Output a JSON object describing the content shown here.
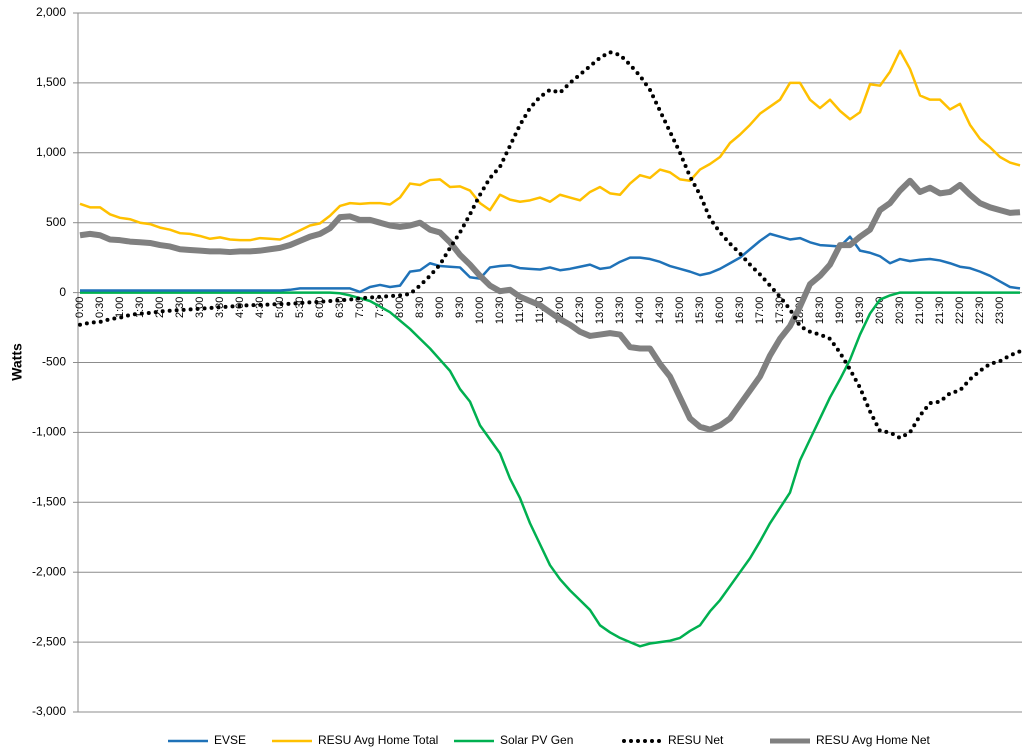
{
  "chart_data": {
    "type": "line",
    "y_label": "Watts",
    "ylim": [
      -3000,
      2000
    ],
    "yticks": [
      {
        "value": 2000,
        "label": "2,000"
      },
      {
        "value": 1500,
        "label": "1,500"
      },
      {
        "value": 1000,
        "label": "1,000"
      },
      500,
      0,
      -500,
      {
        "value": -1000,
        "label": "-1,000"
      },
      {
        "value": -1500,
        "label": "-1,500"
      },
      {
        "value": -2000,
        "label": "-2,000"
      },
      {
        "value": -2500,
        "label": "-2,500"
      },
      {
        "value": -3000,
        "label": "-3,000"
      }
    ],
    "grid": true,
    "legend": "bottom",
    "categories": [
      "0:00",
      null,
      "0:30",
      null,
      "1:00",
      null,
      "1:30",
      null,
      "2:00",
      null,
      "2:30",
      null,
      "3:00",
      null,
      "3:30",
      null,
      "4:00",
      null,
      "4:30",
      null,
      "5:00",
      null,
      "5:30",
      null,
      "6:00",
      null,
      "6:30",
      null,
      "7:00",
      null,
      "7:30",
      null,
      "8:00",
      null,
      "8:30",
      null,
      "9:00",
      null,
      "9:30",
      null,
      "10:00",
      null,
      "10:30",
      null,
      "11:00",
      null,
      "11:30",
      null,
      "12:00",
      null,
      "12:30",
      null,
      "13:00",
      null,
      "13:30",
      null,
      "14:00",
      null,
      "14:30",
      null,
      "15:00",
      null,
      "15:30",
      null,
      "16:00",
      null,
      "16:30",
      null,
      "17:00",
      null,
      "17:30",
      null,
      "18:00",
      null,
      "18:30",
      null,
      "19:00",
      null,
      "19:30",
      null,
      "20:00",
      null,
      "20:30",
      null,
      "21:00",
      null,
      "21:30",
      null,
      "22:00",
      null,
      "22:30",
      null,
      "23:00",
      null,
      null
    ],
    "series": [
      {
        "name": "EVSE",
        "color": "#1f72b8",
        "style": "solid",
        "width": 2.5,
        "values": [
          15,
          15,
          15,
          15,
          15,
          15,
          15,
          15,
          15,
          15,
          15,
          15,
          15,
          15,
          15,
          15,
          15,
          15,
          15,
          15,
          15,
          20,
          30,
          30,
          30,
          30,
          30,
          30,
          5,
          40,
          55,
          40,
          50,
          150,
          160,
          210,
          190,
          185,
          180,
          110,
          100,
          180,
          190,
          195,
          175,
          170,
          165,
          180,
          160,
          170,
          185,
          200,
          170,
          180,
          220,
          250,
          250,
          240,
          220,
          190,
          170,
          150,
          125,
          140,
          170,
          210,
          250,
          310,
          370,
          420,
          400,
          380,
          390,
          360,
          340,
          335,
          330,
          400,
          300,
          285,
          260,
          210,
          240,
          225,
          235,
          240,
          230,
          210,
          185,
          175,
          150,
          120,
          80,
          40,
          30
        ]
      },
      {
        "name": "RESU Avg Home Total",
        "color": "#ffc000",
        "style": "solid",
        "width": 2.5,
        "values": [
          635,
          610,
          610,
          560,
          535,
          525,
          500,
          490,
          465,
          450,
          425,
          420,
          405,
          385,
          395,
          380,
          375,
          375,
          390,
          385,
          380,
          410,
          445,
          480,
          495,
          550,
          620,
          640,
          635,
          640,
          640,
          630,
          680,
          780,
          770,
          805,
          810,
          755,
          760,
          730,
          640,
          590,
          700,
          665,
          650,
          660,
          680,
          650,
          700,
          680,
          660,
          720,
          755,
          710,
          700,
          780,
          840,
          820,
          880,
          860,
          810,
          800,
          880,
          920,
          970,
          1070,
          1130,
          1200,
          1280,
          1330,
          1380,
          1500,
          1500,
          1380,
          1320,
          1380,
          1300,
          1240,
          1290,
          1490,
          1480,
          1580,
          1730,
          1600,
          1410,
          1380,
          1380,
          1310,
          1350,
          1200,
          1100,
          1040,
          970,
          930,
          910
        ]
      },
      {
        "name": "Solar PV Gen",
        "color": "#00b050",
        "style": "solid",
        "width": 2.5,
        "values": [
          0,
          0,
          0,
          0,
          0,
          0,
          0,
          0,
          0,
          0,
          0,
          0,
          0,
          0,
          0,
          0,
          0,
          0,
          0,
          0,
          0,
          0,
          0,
          0,
          0,
          0,
          -5,
          -20,
          -40,
          -60,
          -100,
          -140,
          -200,
          -260,
          -330,
          -400,
          -480,
          -560,
          -690,
          -780,
          -950,
          -1050,
          -1150,
          -1330,
          -1470,
          -1650,
          -1800,
          -1950,
          -2050,
          -2130,
          -2200,
          -2270,
          -2380,
          -2430,
          -2470,
          -2500,
          -2530,
          -2510,
          -2500,
          -2490,
          -2470,
          -2420,
          -2380,
          -2280,
          -2200,
          -2100,
          -2000,
          -1900,
          -1780,
          -1650,
          -1540,
          -1430,
          -1200,
          -1050,
          -900,
          -750,
          -620,
          -480,
          -300,
          -150,
          -50,
          -20,
          0,
          0,
          0,
          0,
          0,
          0,
          0,
          0,
          0,
          0,
          0,
          0,
          0
        ]
      },
      {
        "name": "RESU Net",
        "color": "#000000",
        "style": "dotted",
        "width": 4,
        "values": [
          -230,
          -215,
          -210,
          -190,
          -180,
          -160,
          -150,
          -145,
          -135,
          -130,
          -125,
          -120,
          -115,
          -110,
          -105,
          -100,
          -95,
          -90,
          -88,
          -85,
          -82,
          -80,
          -75,
          -70,
          -65,
          -60,
          -55,
          -50,
          -40,
          -35,
          -30,
          -25,
          -20,
          -10,
          50,
          120,
          200,
          320,
          430,
          560,
          700,
          820,
          900,
          1050,
          1200,
          1320,
          1400,
          1450,
          1430,
          1500,
          1560,
          1620,
          1680,
          1720,
          1700,
          1630,
          1550,
          1450,
          1300,
          1150,
          1000,
          830,
          700,
          530,
          430,
          350,
          280,
          200,
          130,
          50,
          -30,
          -120,
          -240,
          -280,
          -300,
          -330,
          -430,
          -550,
          -680,
          -850,
          -990,
          -1000,
          -1040,
          -1000,
          -880,
          -790,
          -780,
          -720,
          -700,
          -620,
          -560,
          -510,
          -490,
          -450,
          -420
        ]
      },
      {
        "name": "RESU Avg Home Net",
        "color": "#808080",
        "style": "solid",
        "width": 6,
        "values": [
          410,
          420,
          410,
          380,
          375,
          365,
          360,
          355,
          340,
          330,
          310,
          305,
          300,
          295,
          295,
          290,
          295,
          295,
          300,
          310,
          320,
          340,
          370,
          400,
          420,
          460,
          540,
          545,
          520,
          520,
          500,
          480,
          470,
          480,
          500,
          450,
          430,
          360,
          270,
          200,
          120,
          50,
          10,
          20,
          -30,
          -60,
          -90,
          -140,
          -190,
          -230,
          -280,
          -310,
          -300,
          -290,
          -300,
          -390,
          -400,
          -400,
          -510,
          -600,
          -750,
          -900,
          -960,
          -980,
          -950,
          -900,
          -800,
          -700,
          -600,
          -450,
          -330,
          -240,
          -100,
          60,
          120,
          200,
          340,
          340,
          400,
          450,
          590,
          640,
          730,
          800,
          720,
          750,
          710,
          720,
          770,
          700,
          640,
          610,
          590,
          570,
          575
        ]
      }
    ]
  }
}
